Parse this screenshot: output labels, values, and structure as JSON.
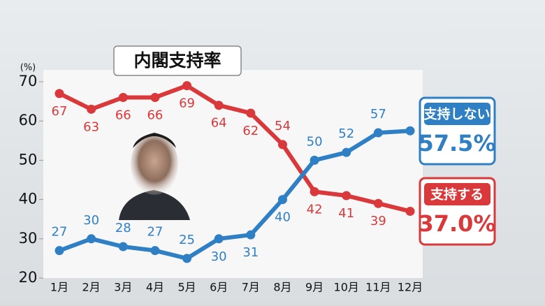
{
  "chart_data": {
    "type": "line",
    "title": "内閣支持率",
    "y_label": "(%)",
    "categories": [
      "1月",
      "2月",
      "3月",
      "4月",
      "5月",
      "6月",
      "7月",
      "8月",
      "9月",
      "10月",
      "11月",
      "12月"
    ],
    "series": [
      {
        "name": "支持する",
        "color": "#d9393a",
        "values": [
          67,
          63,
          66,
          66,
          69,
          64,
          62,
          54,
          42,
          41,
          39,
          37.0
        ],
        "value_labels": [
          "67",
          "63",
          "66",
          "66",
          "69",
          "64",
          "62",
          "54",
          "42",
          "41",
          "39",
          "37.0%"
        ]
      },
      {
        "name": "支持しない",
        "color": "#2f7fc4",
        "values": [
          27,
          30,
          28,
          27,
          25,
          30,
          31,
          40,
          50,
          52,
          57,
          57.5
        ],
        "value_labels": [
          "27",
          "30",
          "28",
          "27",
          "25",
          "30",
          "31",
          "40",
          "50",
          "52",
          "57",
          "57.5%"
        ]
      }
    ],
    "ylim": [
      20,
      70
    ],
    "yticks": [
      20,
      30,
      40,
      50,
      60,
      70
    ]
  }
}
